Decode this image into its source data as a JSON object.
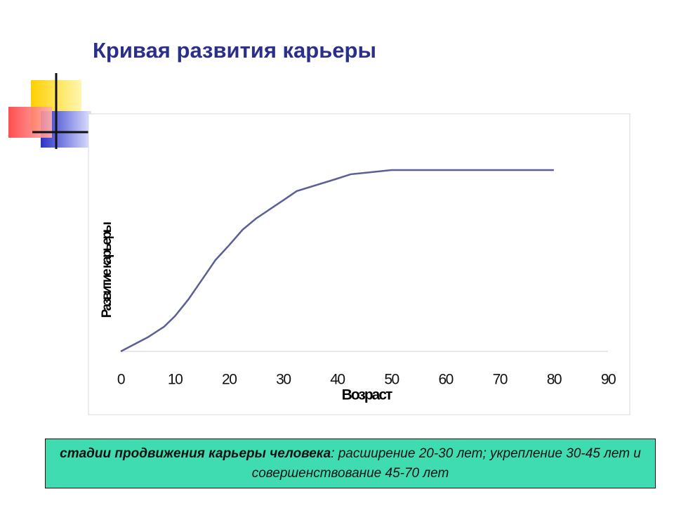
{
  "title": "Кривая развития карьеры",
  "chart_data": {
    "type": "line",
    "x": [
      0,
      5,
      8,
      10,
      12.5,
      15,
      17.5,
      20,
      22.5,
      25,
      30,
      32.5,
      40,
      42.5,
      50,
      60,
      70,
      80
    ],
    "values": [
      0,
      7.8,
      13.6,
      19.4,
      28.7,
      39.5,
      50.4,
      58.5,
      67.1,
      73.3,
      83.3,
      88.4,
      95.3,
      97.7,
      100,
      100,
      100,
      100
    ],
    "color": "#5b5f96",
    "xlim": [
      0,
      90
    ],
    "xticks": [
      0,
      10,
      20,
      30,
      40,
      50,
      60,
      70,
      80,
      90
    ],
    "ylim": [
      0,
      100
    ],
    "xlabel": "Возраст",
    "ylabel": "Развитие карьеры"
  },
  "caption": {
    "bold": "стадии продвижения карьеры человека",
    "rest": ": расширение 20-30 лет; укрепление 30-45 лет и совершенствование 45-70 лет"
  }
}
